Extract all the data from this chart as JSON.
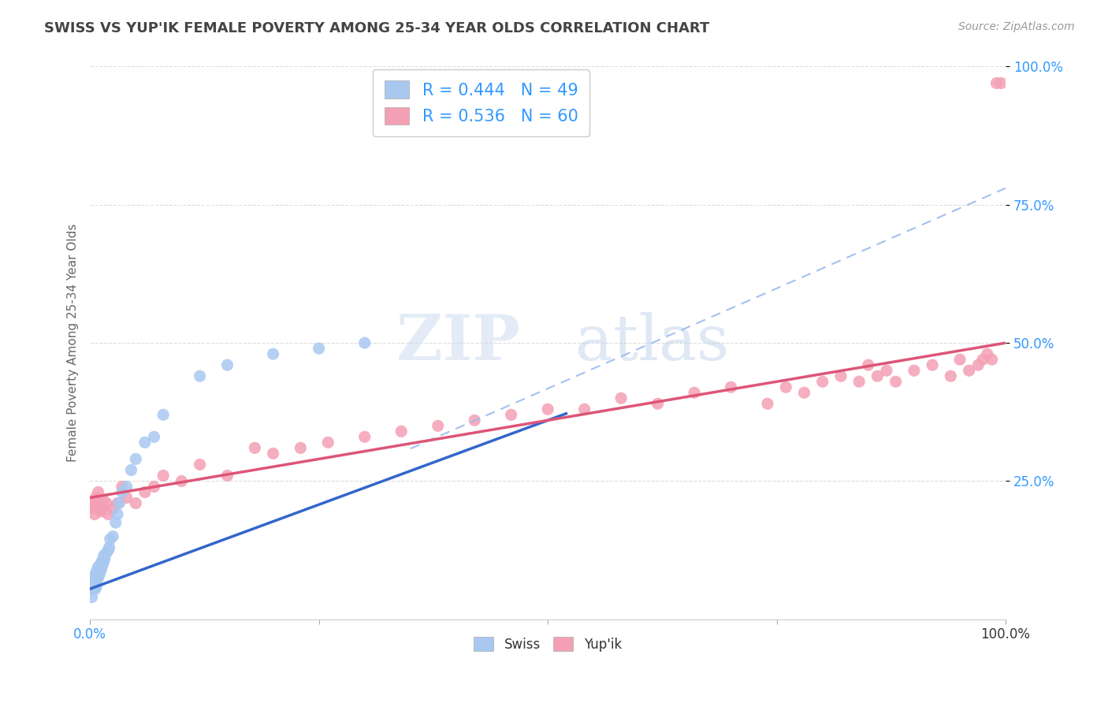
{
  "title": "SWISS VS YUP'IK FEMALE POVERTY AMONG 25-34 YEAR OLDS CORRELATION CHART",
  "source": "Source: ZipAtlas.com",
  "ylabel": "Female Poverty Among 25-34 Year Olds",
  "xlim": [
    0,
    1.0
  ],
  "ylim": [
    0,
    1.0
  ],
  "swiss_color": "#a8c8f0",
  "swiss_edge_color": "#6699dd",
  "yupik_color": "#f4a0b4",
  "yupik_edge_color": "#dd7799",
  "swiss_R": 0.444,
  "swiss_N": 49,
  "yupik_R": 0.536,
  "yupik_N": 60,
  "watermark_zip": "ZIP",
  "watermark_atlas": "atlas",
  "background_color": "#ffffff",
  "grid_color": "#dddddd",
  "title_color": "#444444",
  "axis_label_color": "#666666",
  "ytick_color": "#3399ff",
  "xtick_color_left": "#3399ff",
  "xtick_color_right": "#333333",
  "legend_R_color": "#3399ff",
  "legend_N_color": "#3399ff",
  "swiss_line_color": "#3366cc",
  "yupik_line_color": "#dd5577",
  "dash_line_color": "#99bbee",
  "swiss_x": [
    0.002,
    0.003,
    0.004,
    0.004,
    0.005,
    0.005,
    0.006,
    0.006,
    0.007,
    0.007,
    0.007,
    0.008,
    0.008,
    0.008,
    0.009,
    0.009,
    0.01,
    0.01,
    0.01,
    0.011,
    0.011,
    0.012,
    0.012,
    0.013,
    0.013,
    0.014,
    0.015,
    0.015,
    0.016,
    0.018,
    0.02,
    0.021,
    0.022,
    0.025,
    0.028,
    0.03,
    0.032,
    0.035,
    0.04,
    0.045,
    0.05,
    0.06,
    0.07,
    0.08,
    0.12,
    0.15,
    0.2,
    0.25,
    0.3
  ],
  "swiss_y": [
    0.04,
    0.055,
    0.06,
    0.07,
    0.065,
    0.08,
    0.055,
    0.075,
    0.06,
    0.07,
    0.085,
    0.075,
    0.08,
    0.09,
    0.075,
    0.095,
    0.08,
    0.085,
    0.09,
    0.085,
    0.095,
    0.09,
    0.1,
    0.095,
    0.105,
    0.1,
    0.105,
    0.115,
    0.11,
    0.12,
    0.125,
    0.13,
    0.145,
    0.15,
    0.175,
    0.19,
    0.21,
    0.23,
    0.24,
    0.27,
    0.29,
    0.32,
    0.33,
    0.37,
    0.44,
    0.46,
    0.48,
    0.49,
    0.5
  ],
  "yupik_x": [
    0.002,
    0.004,
    0.005,
    0.006,
    0.007,
    0.008,
    0.009,
    0.01,
    0.012,
    0.013,
    0.015,
    0.018,
    0.02,
    0.025,
    0.03,
    0.035,
    0.04,
    0.05,
    0.06,
    0.07,
    0.08,
    0.1,
    0.12,
    0.15,
    0.18,
    0.2,
    0.23,
    0.26,
    0.3,
    0.34,
    0.38,
    0.42,
    0.46,
    0.5,
    0.54,
    0.58,
    0.62,
    0.66,
    0.7,
    0.74,
    0.76,
    0.78,
    0.8,
    0.82,
    0.84,
    0.85,
    0.86,
    0.87,
    0.88,
    0.9,
    0.92,
    0.94,
    0.95,
    0.96,
    0.97,
    0.975,
    0.98,
    0.985,
    0.99,
    0.995
  ],
  "yupik_y": [
    0.2,
    0.21,
    0.19,
    0.22,
    0.215,
    0.2,
    0.23,
    0.21,
    0.195,
    0.2,
    0.215,
    0.21,
    0.19,
    0.2,
    0.21,
    0.24,
    0.22,
    0.21,
    0.23,
    0.24,
    0.26,
    0.25,
    0.28,
    0.26,
    0.31,
    0.3,
    0.31,
    0.32,
    0.33,
    0.34,
    0.35,
    0.36,
    0.37,
    0.38,
    0.38,
    0.4,
    0.39,
    0.41,
    0.42,
    0.39,
    0.42,
    0.41,
    0.43,
    0.44,
    0.43,
    0.46,
    0.44,
    0.45,
    0.43,
    0.45,
    0.46,
    0.44,
    0.47,
    0.45,
    0.46,
    0.47,
    0.48,
    0.47,
    0.97,
    0.97
  ],
  "swiss_line_x0": 0.0,
  "swiss_line_y0": 0.055,
  "swiss_line_x1": 0.5,
  "swiss_line_y1": 0.36,
  "yupik_line_x0": 0.0,
  "yupik_line_y0": 0.22,
  "yupik_line_x1": 1.0,
  "yupik_line_y1": 0.5,
  "dash_line_x0": 0.0,
  "dash_line_y0": 0.055,
  "dash_line_x1": 1.0,
  "dash_line_y1": 0.78
}
